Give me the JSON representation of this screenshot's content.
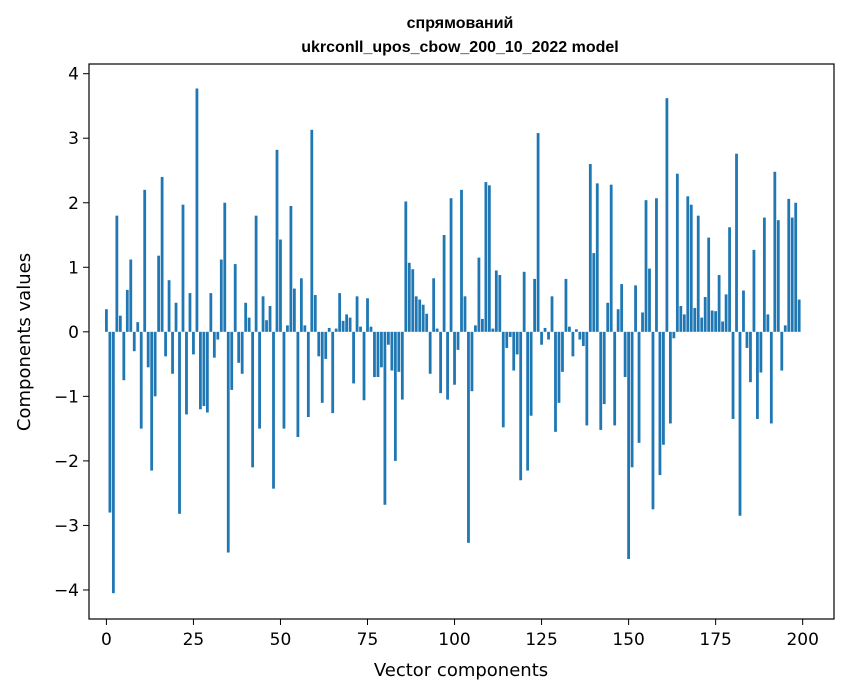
{
  "chart_data": {
    "type": "bar",
    "title": "спрямований",
    "subtitle": "ukrconll_upos_cbow_200_10_2022 model",
    "xlabel": "Vector components",
    "ylabel": "Components values",
    "xlim": [
      -5,
      209
    ],
    "ylim": [
      -4.45,
      4.15
    ],
    "xticks": [
      0,
      25,
      50,
      75,
      100,
      125,
      150,
      175,
      200
    ],
    "yticks": [
      -4,
      -3,
      -2,
      -1,
      0,
      1,
      2,
      3,
      4
    ],
    "ytick_labels": [
      "−4",
      "−3",
      "−2",
      "−1",
      "0",
      "1",
      "2",
      "3",
      "4"
    ],
    "bar_color": "#1f77b4",
    "values": [
      0.35,
      -2.8,
      -4.05,
      1.8,
      0.25,
      -0.75,
      0.65,
      1.12,
      -0.3,
      0.15,
      -1.5,
      2.2,
      -0.55,
      -2.15,
      -1.0,
      1.18,
      2.4,
      -0.38,
      0.8,
      -0.65,
      0.45,
      -2.82,
      1.97,
      -1.28,
      0.6,
      -0.35,
      3.77,
      -1.2,
      -1.15,
      -1.25,
      0.6,
      -0.4,
      -0.12,
      1.12,
      2.0,
      -3.42,
      -0.9,
      1.05,
      -0.48,
      -0.65,
      0.45,
      0.22,
      -2.1,
      1.8,
      -1.5,
      0.55,
      0.18,
      0.4,
      -2.43,
      2.82,
      1.43,
      -1.5,
      0.1,
      1.95,
      0.67,
      -1.63,
      0.83,
      0.1,
      -1.32,
      3.13,
      0.57,
      -0.38,
      -1.1,
      -0.42,
      0.06,
      -1.26,
      0.05,
      0.6,
      0.17,
      0.27,
      0.22,
      -0.8,
      0.55,
      0.08,
      -1.06,
      0.52,
      0.08,
      -0.7,
      -0.7,
      -0.55,
      -2.68,
      -0.2,
      -0.6,
      -2.0,
      -0.62,
      -1.05,
      2.02,
      1.07,
      0.97,
      0.55,
      0.5,
      0.42,
      0.28,
      -0.65,
      0.83,
      0.05,
      -0.95,
      1.5,
      -1.05,
      2.07,
      -0.82,
      -0.28,
      2.2,
      0.55,
      -3.27,
      -0.92,
      0.1,
      1.15,
      0.2,
      2.32,
      2.27,
      0.05,
      0.95,
      0.88,
      -1.48,
      -0.25,
      -0.08,
      -0.6,
      -0.35,
      -2.3,
      0.93,
      -2.15,
      -1.3,
      0.82,
      3.08,
      -0.2,
      0.06,
      -0.12,
      0.55,
      -1.55,
      -1.1,
      -0.62,
      0.82,
      0.08,
      -0.38,
      0.04,
      -0.12,
      -0.22,
      -1.45,
      2.6,
      1.22,
      2.3,
      -1.52,
      -1.12,
      0.45,
      2.28,
      -1.45,
      0.35,
      0.74,
      -0.7,
      -3.52,
      -2.1,
      0.72,
      -1.72,
      0.3,
      2.04,
      0.98,
      -2.75,
      2.07,
      -2.22,
      -1.75,
      3.62,
      -1.42,
      -0.1,
      2.45,
      0.4,
      0.27,
      2.1,
      1.97,
      0.37,
      1.8,
      0.22,
      0.54,
      1.46,
      0.33,
      0.32,
      0.88,
      0.16,
      0.58,
      1.62,
      -1.35,
      2.76,
      -2.85,
      0.64,
      -0.25,
      -0.78,
      1.27,
      -1.35,
      -0.63,
      1.77,
      0.27,
      -1.42,
      2.48,
      1.73,
      -0.6,
      0.1,
      2.06,
      1.77,
      2.0,
      0.5
    ]
  }
}
